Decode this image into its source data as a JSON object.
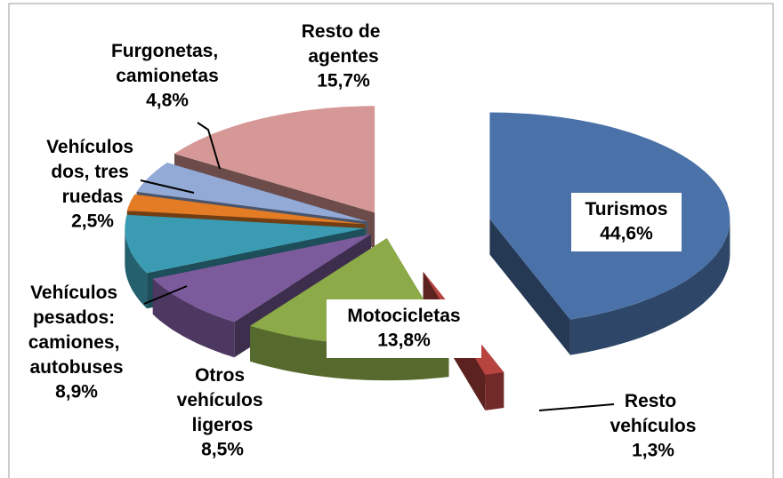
{
  "chart_data": {
    "type": "pie",
    "categories": [
      "Turismos",
      "Resto vehículos",
      "Motocicletas",
      "Otros vehículos ligeros",
      "Vehículos pesados: camiones, autobuses",
      "Vehículos dos, tres ruedas",
      "Furgonetas, camionetas",
      "Resto de agentes"
    ],
    "values": [
      44.6,
      1.3,
      13.8,
      8.5,
      8.9,
      2.5,
      4.8,
      15.7
    ],
    "value_labels": [
      "44,6%",
      "1,3%",
      "13,8%",
      "8,5%",
      "8,9%",
      "2,5%",
      "4,8%",
      "15,7%"
    ],
    "colors": [
      "#4a72a8",
      "#b84440",
      "#8cab48",
      "#7c5b9c",
      "#3a9bb2",
      "#e47c26",
      "#93a9d6",
      "#d69896"
    ]
  }
}
